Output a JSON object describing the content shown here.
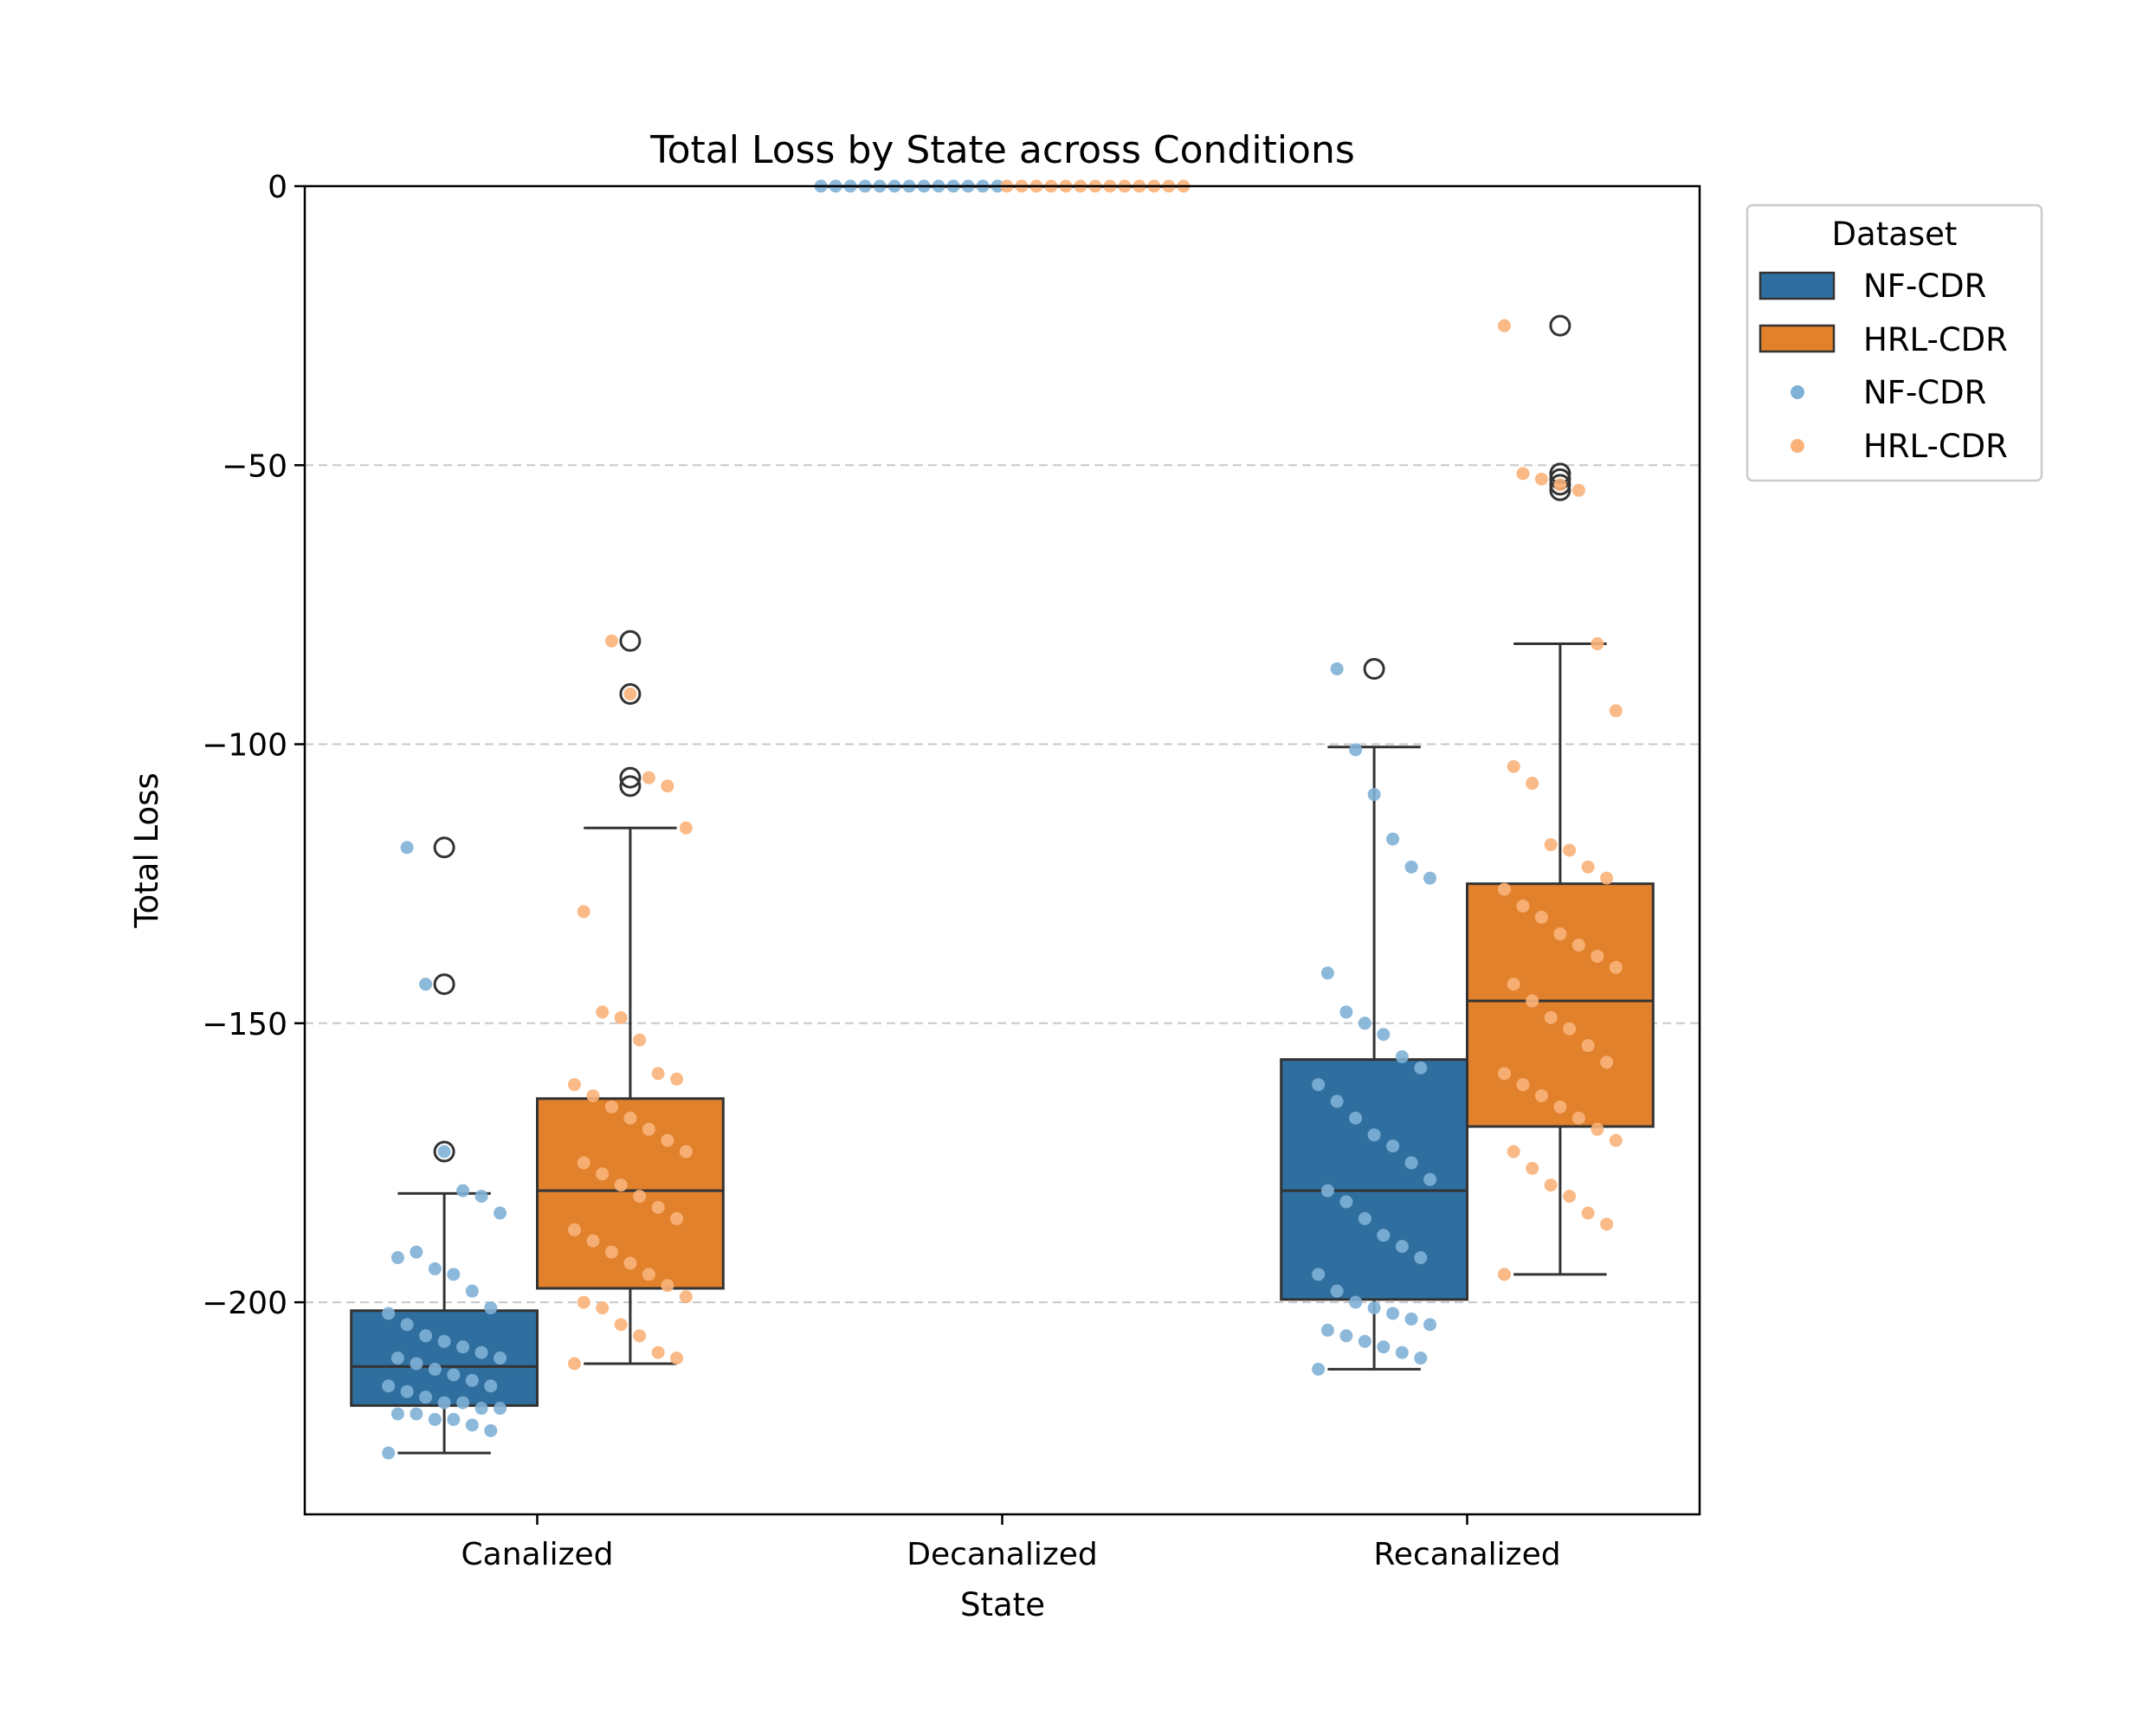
{
  "chart_data": {
    "type": "box",
    "title": "Total Loss by State across Conditions",
    "xlabel": "State",
    "ylabel": "Total Loss",
    "categories": [
      "Canalized",
      "Decanalized",
      "Recanalized"
    ],
    "ylim": [
      -238,
      0
    ],
    "yticks": [
      0,
      -50,
      -100,
      -150,
      -200
    ],
    "ytick_labels": [
      "0",
      "−50",
      "−100",
      "−150",
      "−200"
    ],
    "grid": "horizontal dashed",
    "legend": {
      "title": "Dataset",
      "placement": "outside-top-right",
      "entries": [
        {
          "label": "NF-CDR",
          "kind": "box"
        },
        {
          "label": "HRL-CDR",
          "kind": "box"
        },
        {
          "label": "NF-CDR",
          "kind": "point"
        },
        {
          "label": "HRL-CDR",
          "kind": "point"
        }
      ]
    },
    "colors": {
      "NF-CDR": "#2f6f9f",
      "HRL-CDR": "#e2812b",
      "NF-CDR_point": "#7fb0d6",
      "HRL-CDR_point": "#f9b27a"
    },
    "series": [
      {
        "name": "NF-CDR",
        "boxes": [
          {
            "category": "Canalized",
            "q1": -218.5,
            "median": -211.5,
            "q3": -201.5,
            "whisker_low": -227,
            "whisker_high": -180.5,
            "outliers": [
              -118.5,
              -143,
              -173
            ]
          },
          {
            "category": "Decanalized",
            "q1": 0,
            "median": 0,
            "q3": 0,
            "whisker_low": 0,
            "whisker_high": 0,
            "outliers": []
          },
          {
            "category": "Recanalized",
            "q1": -199.5,
            "median": -180,
            "q3": -156.5,
            "whisker_low": -212,
            "whisker_high": -100.5,
            "outliers": [
              -86.5
            ]
          }
        ],
        "points": {
          "Canalized": [
            -227,
            -223,
            -222,
            -221,
            -221,
            -220,
            -220,
            -219,
            -219,
            -218,
            -218,
            -217,
            -216,
            -215,
            -215,
            -214,
            -213,
            -212,
            -211,
            -210,
            -210,
            -209,
            -208,
            -207,
            -206,
            -204,
            -202,
            -201,
            -198,
            -195,
            -194,
            -191,
            -192,
            -184,
            -181,
            -180,
            -173,
            -143,
            -118.5
          ],
          "Decanalized": [
            0,
            0,
            0,
            0,
            0,
            0,
            0,
            0,
            0,
            0,
            0,
            0,
            0
          ],
          "Recanalized": [
            -212,
            -210,
            -209,
            -208,
            -207,
            -206,
            -205,
            -204,
            -203,
            -202,
            -201,
            -200,
            -198,
            -195,
            -192,
            -190,
            -188,
            -185,
            -182,
            -180,
            -178,
            -175,
            -172,
            -170,
            -167,
            -164,
            -161,
            -158,
            -156,
            -152,
            -150,
            -148,
            -141,
            -124,
            -122,
            -117,
            -109,
            -101,
            -86.5
          ]
        }
      },
      {
        "name": "HRL-CDR",
        "boxes": [
          {
            "category": "Canalized",
            "q1": -197.5,
            "median": -180,
            "q3": -163.5,
            "whisker_low": -211,
            "whisker_high": -115,
            "outliers": [
              -81.5,
              -91,
              -106,
              -107.5
            ]
          },
          {
            "category": "Decanalized",
            "q1": 0,
            "median": 0,
            "q3": 0,
            "whisker_low": 0,
            "whisker_high": 0,
            "outliers": []
          },
          {
            "category": "Recanalized",
            "q1": -168.5,
            "median": -146,
            "q3": -125,
            "whisker_low": -195,
            "whisker_high": -82,
            "outliers": [
              -25,
              -51.5,
              -52.5,
              -53.5,
              -54.5
            ]
          }
        ],
        "points": {
          "Canalized": [
            -211,
            -210,
            -209,
            -206,
            -204,
            -201,
            -200,
            -199,
            -197,
            -195,
            -193,
            -191,
            -189,
            -187,
            -185,
            -183,
            -181,
            -179,
            -177,
            -175,
            -173,
            -171,
            -169,
            -167,
            -165,
            -163,
            -161,
            -160,
            -159,
            -153,
            -149,
            -148,
            -130,
            -115,
            -107.5,
            -106,
            -91,
            -81.5
          ],
          "Decanalized": [
            0,
            0,
            0,
            0,
            0,
            0,
            0,
            0,
            0,
            0,
            0,
            0,
            0
          ],
          "Recanalized": [
            -195,
            -186,
            -184,
            -181,
            -179,
            -176,
            -173,
            -171,
            -169,
            -167,
            -165,
            -163,
            -161,
            -159,
            -157,
            -154,
            -151,
            -149,
            -146,
            -143,
            -140,
            -138,
            -136,
            -134,
            -131,
            -129,
            -126,
            -124,
            -122,
            -119,
            -118,
            -107,
            -104,
            -94,
            -82,
            -54.5,
            -53.5,
            -52.5,
            -51.5,
            -25
          ]
        }
      }
    ]
  }
}
